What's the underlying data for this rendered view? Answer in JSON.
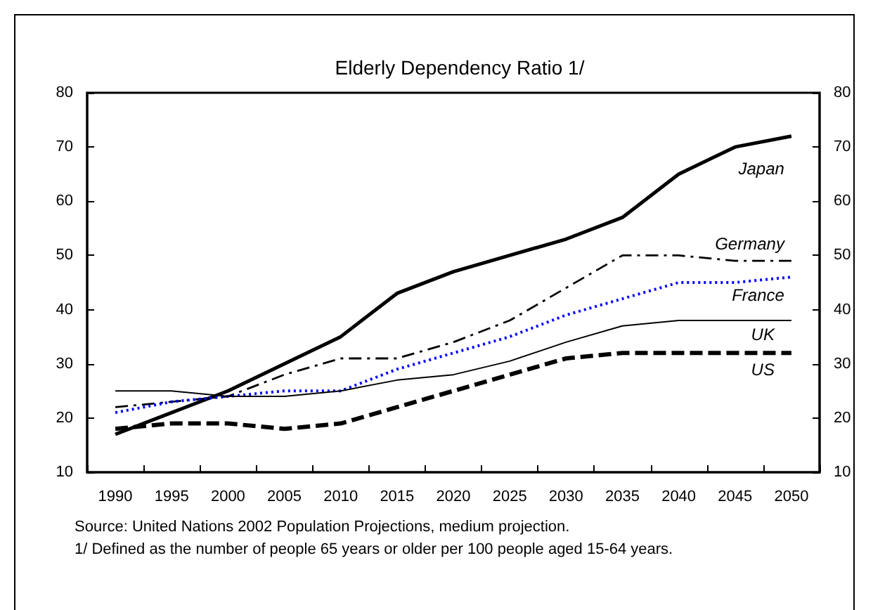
{
  "chart_data": {
    "type": "line",
    "title": "Elderly Dependency Ratio 1/",
    "categories": [
      "1990",
      "1995",
      "2000",
      "2005",
      "2010",
      "2015",
      "2020",
      "2025",
      "2030",
      "2035",
      "2040",
      "2045",
      "2050"
    ],
    "series": [
      {
        "name": "Japan",
        "color": "#000000",
        "line_style": "solid",
        "values": [
          17,
          21,
          25,
          30,
          35,
          43,
          47,
          50,
          53,
          57,
          65,
          70,
          72
        ]
      },
      {
        "name": "Germany",
        "color": "#000000",
        "line_style": "dashdot",
        "values": [
          22,
          23,
          24,
          28,
          31,
          31,
          34,
          38,
          44,
          50,
          50,
          49,
          49
        ]
      },
      {
        "name": "France",
        "color": "#0000ff",
        "line_style": "dotted",
        "values": [
          21,
          23,
          24,
          25,
          25,
          29,
          32,
          35,
          39,
          42,
          45,
          45,
          46
        ]
      },
      {
        "name": "UK",
        "color": "#000000",
        "line_style": "solid",
        "values": [
          25,
          25,
          24,
          24,
          25,
          27,
          28,
          30.5,
          34,
          37,
          38,
          38,
          38
        ]
      },
      {
        "name": "US",
        "color": "#000000",
        "line_style": "dashed",
        "values": [
          18,
          19,
          19,
          18,
          19,
          22,
          25,
          28,
          31,
          32,
          32,
          32,
          32
        ]
      }
    ],
    "ylim": [
      10,
      80
    ],
    "yticks": [
      10,
      20,
      30,
      40,
      50,
      60,
      70,
      80
    ],
    "y2lim": [
      10,
      80
    ],
    "y2ticks": [
      10,
      20,
      30,
      40,
      50,
      60,
      70,
      80
    ],
    "annotations": [
      "Source: United Nations 2002 Population Projections, medium projection.",
      "1/ Defined as the number of people 65 years or older per 100 people aged 15-64 years."
    ],
    "grid": false,
    "legend": false,
    "marker": "none"
  }
}
